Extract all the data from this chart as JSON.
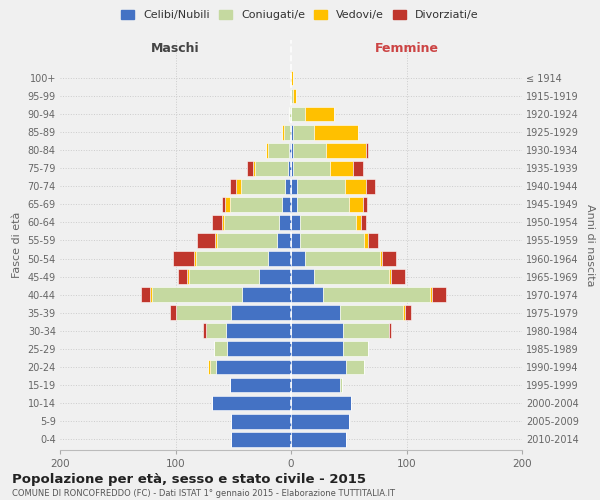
{
  "age_groups": [
    "0-4",
    "5-9",
    "10-14",
    "15-19",
    "20-24",
    "25-29",
    "30-34",
    "35-39",
    "40-44",
    "45-49",
    "50-54",
    "55-59",
    "60-64",
    "65-69",
    "70-74",
    "75-79",
    "80-84",
    "85-89",
    "90-94",
    "95-99",
    "100+"
  ],
  "birth_years": [
    "2010-2014",
    "2005-2009",
    "2000-2004",
    "1995-1999",
    "1990-1994",
    "1985-1989",
    "1980-1984",
    "1975-1979",
    "1970-1974",
    "1965-1969",
    "1960-1964",
    "1955-1959",
    "1950-1954",
    "1945-1949",
    "1940-1944",
    "1935-1939",
    "1930-1934",
    "1925-1929",
    "1920-1924",
    "1915-1919",
    "≤ 1914"
  ],
  "males": {
    "celibi": [
      52,
      52,
      68,
      53,
      65,
      55,
      56,
      52,
      42,
      28,
      20,
      12,
      10,
      8,
      5,
      3,
      2,
      0,
      0,
      0,
      0
    ],
    "coniugati": [
      0,
      0,
      0,
      0,
      5,
      12,
      18,
      48,
      78,
      60,
      62,
      52,
      48,
      45,
      38,
      28,
      18,
      6,
      2,
      0,
      0
    ],
    "vedovi": [
      0,
      0,
      0,
      0,
      2,
      0,
      0,
      0,
      2,
      2,
      2,
      2,
      2,
      4,
      5,
      2,
      2,
      2,
      0,
      0,
      0
    ],
    "divorziati": [
      0,
      0,
      0,
      0,
      0,
      0,
      2,
      5,
      8,
      8,
      18,
      15,
      8,
      3,
      5,
      5,
      0,
      0,
      0,
      0,
      0
    ]
  },
  "females": {
    "nubili": [
      48,
      50,
      52,
      42,
      48,
      45,
      45,
      42,
      28,
      20,
      12,
      8,
      8,
      5,
      5,
      2,
      2,
      2,
      0,
      0,
      0
    ],
    "coniugate": [
      0,
      0,
      0,
      2,
      15,
      22,
      40,
      55,
      92,
      65,
      65,
      55,
      48,
      45,
      42,
      32,
      28,
      18,
      12,
      2,
      0
    ],
    "vedove": [
      0,
      0,
      0,
      0,
      0,
      0,
      0,
      2,
      2,
      2,
      2,
      4,
      5,
      12,
      18,
      20,
      35,
      38,
      25,
      2,
      2
    ],
    "divorziate": [
      0,
      0,
      0,
      0,
      0,
      0,
      2,
      5,
      12,
      12,
      12,
      8,
      4,
      4,
      8,
      8,
      2,
      0,
      0,
      0,
      0
    ]
  },
  "colors": {
    "celibi": "#4472c4",
    "coniugati": "#c5d9a0",
    "vedovi": "#ffc000",
    "divorziati": "#c0362c"
  },
  "title": "Popolazione per età, sesso e stato civile - 2015",
  "subtitle": "COMUNE DI RONCOFREDDO (FC) - Dati ISTAT 1° gennaio 2015 - Elaborazione TUTTITALIA.IT",
  "xlabel_left": "Maschi",
  "xlabel_right": "Femmine",
  "ylabel_left": "Fasce di età",
  "ylabel_right": "Anni di nascita",
  "xlim": 200,
  "legend_labels": [
    "Celibi/Nubili",
    "Coniugati/e",
    "Vedovi/e",
    "Divorziati/e"
  ],
  "bg_color": "#f0f0f0"
}
